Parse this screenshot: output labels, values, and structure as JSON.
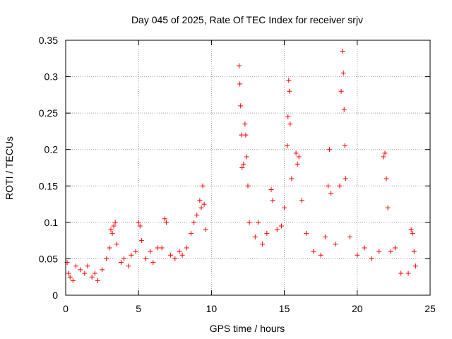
{
  "chart_data": {
    "type": "scatter",
    "title": "Day 045 of 2025, Rate Of TEC Index for receiver srjv",
    "xlabel": "GPS time / hours",
    "ylabel": "ROTI / TECUs",
    "xlim": [
      0,
      25
    ],
    "ylim": [
      0,
      0.35
    ],
    "xticks": [
      0,
      5,
      10,
      15,
      20,
      25
    ],
    "yticks": [
      0,
      0.05,
      0.1,
      0.15,
      0.2,
      0.25,
      0.3,
      0.35
    ],
    "xtick_labels": [
      "0",
      "5",
      "10",
      "15",
      "20",
      "25"
    ],
    "ytick_labels": [
      "0",
      "0.05",
      "0.1",
      "0.15",
      "0.2",
      "0.25",
      "0.3",
      "0.35"
    ],
    "grid": true,
    "marker": "plus",
    "color": "#ff0000",
    "series": [
      {
        "values": [
          [
            0.1,
            0.045
          ],
          [
            0.2,
            0.03
          ],
          [
            0.3,
            0.025
          ],
          [
            0.5,
            0.02
          ],
          [
            0.7,
            0.04
          ],
          [
            1.0,
            0.035
          ],
          [
            1.3,
            0.03
          ],
          [
            1.5,
            0.04
          ],
          [
            1.8,
            0.025
          ],
          [
            2.0,
            0.03
          ],
          [
            2.2,
            0.02
          ],
          [
            2.5,
            0.035
          ],
          [
            2.8,
            0.05
          ],
          [
            3.0,
            0.065
          ],
          [
            3.1,
            0.09
          ],
          [
            3.2,
            0.085
          ],
          [
            3.3,
            0.095
          ],
          [
            3.4,
            0.1
          ],
          [
            3.5,
            0.07
          ],
          [
            3.8,
            0.045
          ],
          [
            4.0,
            0.05
          ],
          [
            4.3,
            0.04
          ],
          [
            4.5,
            0.055
          ],
          [
            4.8,
            0.06
          ],
          [
            5.0,
            0.1
          ],
          [
            5.1,
            0.095
          ],
          [
            5.2,
            0.075
          ],
          [
            5.5,
            0.05
          ],
          [
            5.8,
            0.06
          ],
          [
            6.0,
            0.045
          ],
          [
            6.3,
            0.065
          ],
          [
            6.6,
            0.065
          ],
          [
            6.8,
            0.105
          ],
          [
            6.9,
            0.1
          ],
          [
            7.2,
            0.055
          ],
          [
            7.5,
            0.05
          ],
          [
            7.8,
            0.06
          ],
          [
            8.0,
            0.055
          ],
          [
            8.3,
            0.065
          ],
          [
            8.6,
            0.085
          ],
          [
            8.8,
            0.1
          ],
          [
            9.0,
            0.11
          ],
          [
            9.2,
            0.13
          ],
          [
            9.3,
            0.12
          ],
          [
            9.4,
            0.15
          ],
          [
            9.5,
            0.125
          ],
          [
            9.6,
            0.09
          ],
          [
            11.9,
            0.315
          ],
          [
            11.95,
            0.29
          ],
          [
            12.0,
            0.26
          ],
          [
            12.05,
            0.22
          ],
          [
            12.1,
            0.175
          ],
          [
            12.2,
            0.18
          ],
          [
            12.3,
            0.235
          ],
          [
            12.35,
            0.22
          ],
          [
            12.4,
            0.19
          ],
          [
            12.5,
            0.15
          ],
          [
            12.6,
            0.1
          ],
          [
            13.0,
            0.08
          ],
          [
            13.2,
            0.1
          ],
          [
            13.5,
            0.07
          ],
          [
            13.8,
            0.085
          ],
          [
            14.1,
            0.145
          ],
          [
            14.2,
            0.13
          ],
          [
            14.5,
            0.09
          ],
          [
            14.8,
            0.095
          ],
          [
            15.0,
            0.12
          ],
          [
            15.2,
            0.205
          ],
          [
            15.25,
            0.245
          ],
          [
            15.3,
            0.295
          ],
          [
            15.35,
            0.28
          ],
          [
            15.4,
            0.235
          ],
          [
            15.5,
            0.16
          ],
          [
            15.8,
            0.195
          ],
          [
            15.9,
            0.18
          ],
          [
            16.0,
            0.19
          ],
          [
            16.2,
            0.13
          ],
          [
            16.5,
            0.085
          ],
          [
            17.0,
            0.06
          ],
          [
            17.5,
            0.055
          ],
          [
            17.8,
            0.08
          ],
          [
            18.0,
            0.15
          ],
          [
            18.1,
            0.2
          ],
          [
            18.2,
            0.14
          ],
          [
            18.5,
            0.07
          ],
          [
            18.8,
            0.15
          ],
          [
            18.9,
            0.28
          ],
          [
            19.0,
            0.335
          ],
          [
            19.05,
            0.305
          ],
          [
            19.1,
            0.255
          ],
          [
            19.15,
            0.205
          ],
          [
            19.2,
            0.16
          ],
          [
            19.5,
            0.08
          ],
          [
            20.0,
            0.055
          ],
          [
            20.5,
            0.065
          ],
          [
            21.0,
            0.05
          ],
          [
            21.5,
            0.06
          ],
          [
            21.8,
            0.19
          ],
          [
            21.9,
            0.195
          ],
          [
            22.0,
            0.16
          ],
          [
            22.1,
            0.12
          ],
          [
            22.3,
            0.06
          ],
          [
            22.6,
            0.065
          ],
          [
            23.0,
            0.03
          ],
          [
            23.5,
            0.03
          ],
          [
            23.7,
            0.09
          ],
          [
            23.8,
            0.085
          ],
          [
            23.9,
            0.06
          ],
          [
            24.0,
            0.04
          ]
        ]
      }
    ]
  }
}
